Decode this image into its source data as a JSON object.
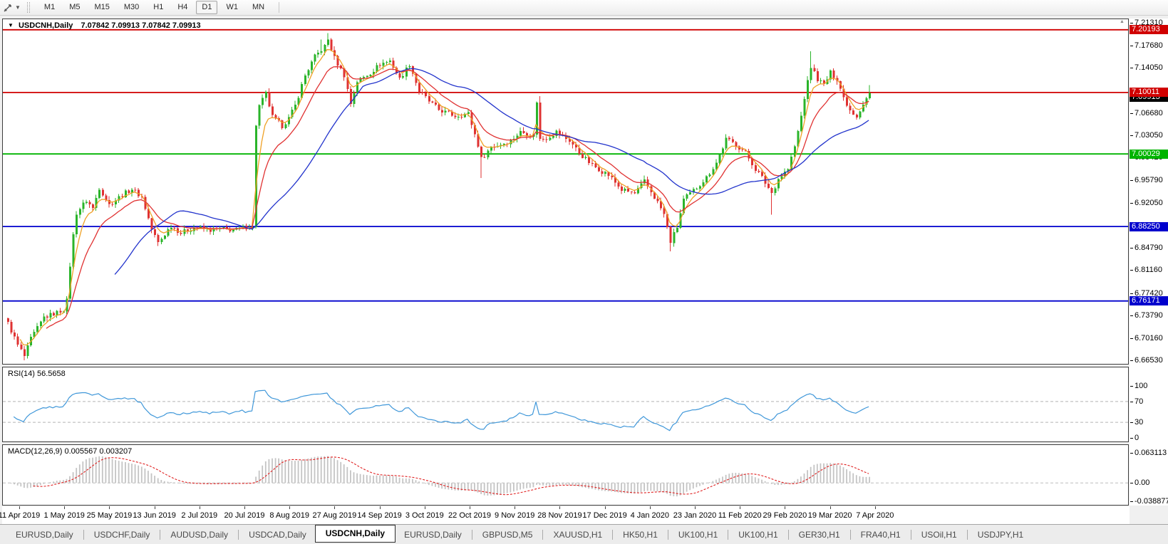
{
  "toolbar": {
    "timeframes": [
      "M1",
      "M5",
      "M15",
      "M30",
      "H1",
      "H4",
      "D1",
      "W1",
      "MN"
    ],
    "active_timeframe": "D1"
  },
  "chart": {
    "symbol_title": "USDCNH,Daily",
    "ohlc": "7.07842 7.09913 7.07842 7.09913",
    "price_ticks": [
      "7.21310",
      "7.17680",
      "7.14050",
      "7.06680",
      "7.03050",
      "6.99420",
      "6.95790",
      "6.92050",
      "6.84790",
      "6.81160",
      "6.77420",
      "6.73790",
      "6.70160",
      "6.66530"
    ],
    "levels": [
      {
        "price": "7.20193",
        "color": "#d00000"
      },
      {
        "price": "7.10011",
        "color": "#d00000"
      },
      {
        "price": "7.00029",
        "color": "#00b400"
      },
      {
        "price": "6.88250",
        "color": "#0000cd"
      },
      {
        "price": "6.76171",
        "color": "#0000cd"
      }
    ],
    "bid_badge": {
      "price": "7.09913",
      "color": "#000000"
    }
  },
  "rsi": {
    "label": "RSI(14) 56.5658",
    "ticks": [
      "100",
      "70",
      "30",
      "0"
    ],
    "dashed_levels": [
      70,
      30
    ],
    "line_color": "#3f97d9"
  },
  "macd": {
    "label": "MACD(12,26,9) 0.005567 0.003207",
    "ticks": [
      "0.063113",
      "0.00",
      "-0.038877"
    ],
    "histogram_color": "#c4c4c4",
    "signal_color": "#e02020"
  },
  "date_axis": [
    "11 Apr 2019",
    "1 May 2019",
    "25 May 2019",
    "13 Jun 2019",
    "2 Jul 2019",
    "20 Jul 2019",
    "8 Aug 2019",
    "27 Aug 2019",
    "14 Sep 2019",
    "3 Oct 2019",
    "22 Oct 2019",
    "9 Nov 2019",
    "28 Nov 2019",
    "17 Dec 2019",
    "4 Jan 2020",
    "23 Jan 2020",
    "11 Feb 2020",
    "29 Feb 2020",
    "19 Mar 2020",
    "7 Apr 2020"
  ],
  "tabs": {
    "items": [
      "EURUSD,Daily",
      "USDCHF,Daily",
      "AUDUSD,Daily",
      "USDCAD,Daily",
      "USDCNH,Daily",
      "EURUSD,Daily",
      "GBPUSD,M5",
      "XAUUSD,H1",
      "HK50,H1",
      "UK100,H1",
      "UK100,H1",
      "GER30,H1",
      "FRA40,H1",
      "USOil,H1",
      "USDJPY,H1"
    ],
    "active_index": 4
  },
  "chart_data": {
    "type": "candlestick",
    "title": "USDCNH, Daily",
    "symbol": "USDCNH",
    "timeframe": "Daily",
    "visible_price_range": [
      6.6596,
      7.219
    ],
    "candle_count": 265,
    "up_color": "#2ab42a",
    "down_color": "#df3232",
    "noise": 0.008,
    "close_anchors": [
      [
        0,
        6.725
      ],
      [
        3,
        6.69
      ],
      [
        5,
        6.672
      ],
      [
        7,
        6.7
      ],
      [
        11,
        6.735
      ],
      [
        14,
        6.741
      ],
      [
        17,
        6.748
      ],
      [
        18,
        6.762
      ],
      [
        19,
        6.82
      ],
      [
        20,
        6.868
      ],
      [
        21,
        6.905
      ],
      [
        24,
        6.925
      ],
      [
        26,
        6.912
      ],
      [
        28,
        6.946
      ],
      [
        31,
        6.918
      ],
      [
        35,
        6.934
      ],
      [
        38,
        6.944
      ],
      [
        41,
        6.93
      ],
      [
        44,
        6.878
      ],
      [
        46,
        6.856
      ],
      [
        50,
        6.884
      ],
      [
        53,
        6.872
      ],
      [
        57,
        6.881
      ],
      [
        62,
        6.877
      ],
      [
        66,
        6.878
      ],
      [
        70,
        6.877
      ],
      [
        74,
        6.884
      ],
      [
        75,
        6.88
      ],
      [
        76,
        7.048
      ],
      [
        77,
        7.078
      ],
      [
        79,
        7.098
      ],
      [
        81,
        7.06
      ],
      [
        84,
        7.046
      ],
      [
        86,
        7.058
      ],
      [
        88,
        7.079
      ],
      [
        91,
        7.128
      ],
      [
        94,
        7.158
      ],
      [
        97,
        7.175
      ],
      [
        98,
        7.186
      ],
      [
        100,
        7.156
      ],
      [
        103,
        7.128
      ],
      [
        105,
        7.082
      ],
      [
        107,
        7.118
      ],
      [
        111,
        7.132
      ],
      [
        114,
        7.146
      ],
      [
        117,
        7.152
      ],
      [
        120,
        7.122
      ],
      [
        123,
        7.146
      ],
      [
        126,
        7.102
      ],
      [
        129,
        7.086
      ],
      [
        132,
        7.072
      ],
      [
        137,
        7.062
      ],
      [
        141,
        7.066
      ],
      [
        144,
        7.015
      ],
      [
        145,
        6.992
      ],
      [
        148,
        7.012
      ],
      [
        151,
        7.016
      ],
      [
        154,
        7.022
      ],
      [
        157,
        7.036
      ],
      [
        161,
        7.03
      ],
      [
        162,
        7.086
      ],
      [
        163,
        7.024
      ],
      [
        165,
        7.026
      ],
      [
        168,
        7.036
      ],
      [
        172,
        7.022
      ],
      [
        175,
        7.002
      ],
      [
        179,
        6.982
      ],
      [
        184,
        6.966
      ],
      [
        188,
        6.942
      ],
      [
        192,
        6.936
      ],
      [
        195,
        6.956
      ],
      [
        199,
        6.922
      ],
      [
        201,
        6.902
      ],
      [
        203,
        6.858
      ],
      [
        205,
        6.882
      ],
      [
        207,
        6.926
      ],
      [
        211,
        6.946
      ],
      [
        214,
        6.962
      ],
      [
        217,
        6.986
      ],
      [
        220,
        7.024
      ],
      [
        223,
        7.016
      ],
      [
        226,
        7.002
      ],
      [
        229,
        6.976
      ],
      [
        231,
        6.962
      ],
      [
        234,
        6.937
      ],
      [
        236,
        6.96
      ],
      [
        239,
        6.976
      ],
      [
        241,
        7.012
      ],
      [
        243,
        7.062
      ],
      [
        244,
        7.092
      ],
      [
        246,
        7.142
      ],
      [
        248,
        7.122
      ],
      [
        250,
        7.112
      ],
      [
        252,
        7.132
      ],
      [
        254,
        7.122
      ],
      [
        256,
        7.092
      ],
      [
        258,
        7.072
      ],
      [
        260,
        7.062
      ],
      [
        262,
        7.082
      ],
      [
        264,
        7.099
      ]
    ],
    "wick_overrides": [
      {
        "i": 5,
        "low": 6.6655
      },
      {
        "i": 96,
        "high": 7.186
      },
      {
        "i": 98,
        "high": 7.1965
      },
      {
        "i": 145,
        "low": 6.9615
      },
      {
        "i": 163,
        "high": 7.094
      },
      {
        "i": 203,
        "low": 6.8425
      },
      {
        "i": 234,
        "low": 6.902
      },
      {
        "i": 246,
        "high": 7.167
      },
      {
        "i": 264,
        "high": 7.112
      }
    ],
    "moving_averages": [
      {
        "type": "ema",
        "period": 5,
        "color": "#efa126"
      },
      {
        "type": "ema",
        "period": 13,
        "color": "#e03232"
      },
      {
        "type": "sma",
        "period": 34,
        "color": "#2233cc"
      }
    ],
    "rsi_period": 14,
    "macd_params": {
      "fast": 12,
      "slow": 26,
      "signal": 9
    }
  }
}
